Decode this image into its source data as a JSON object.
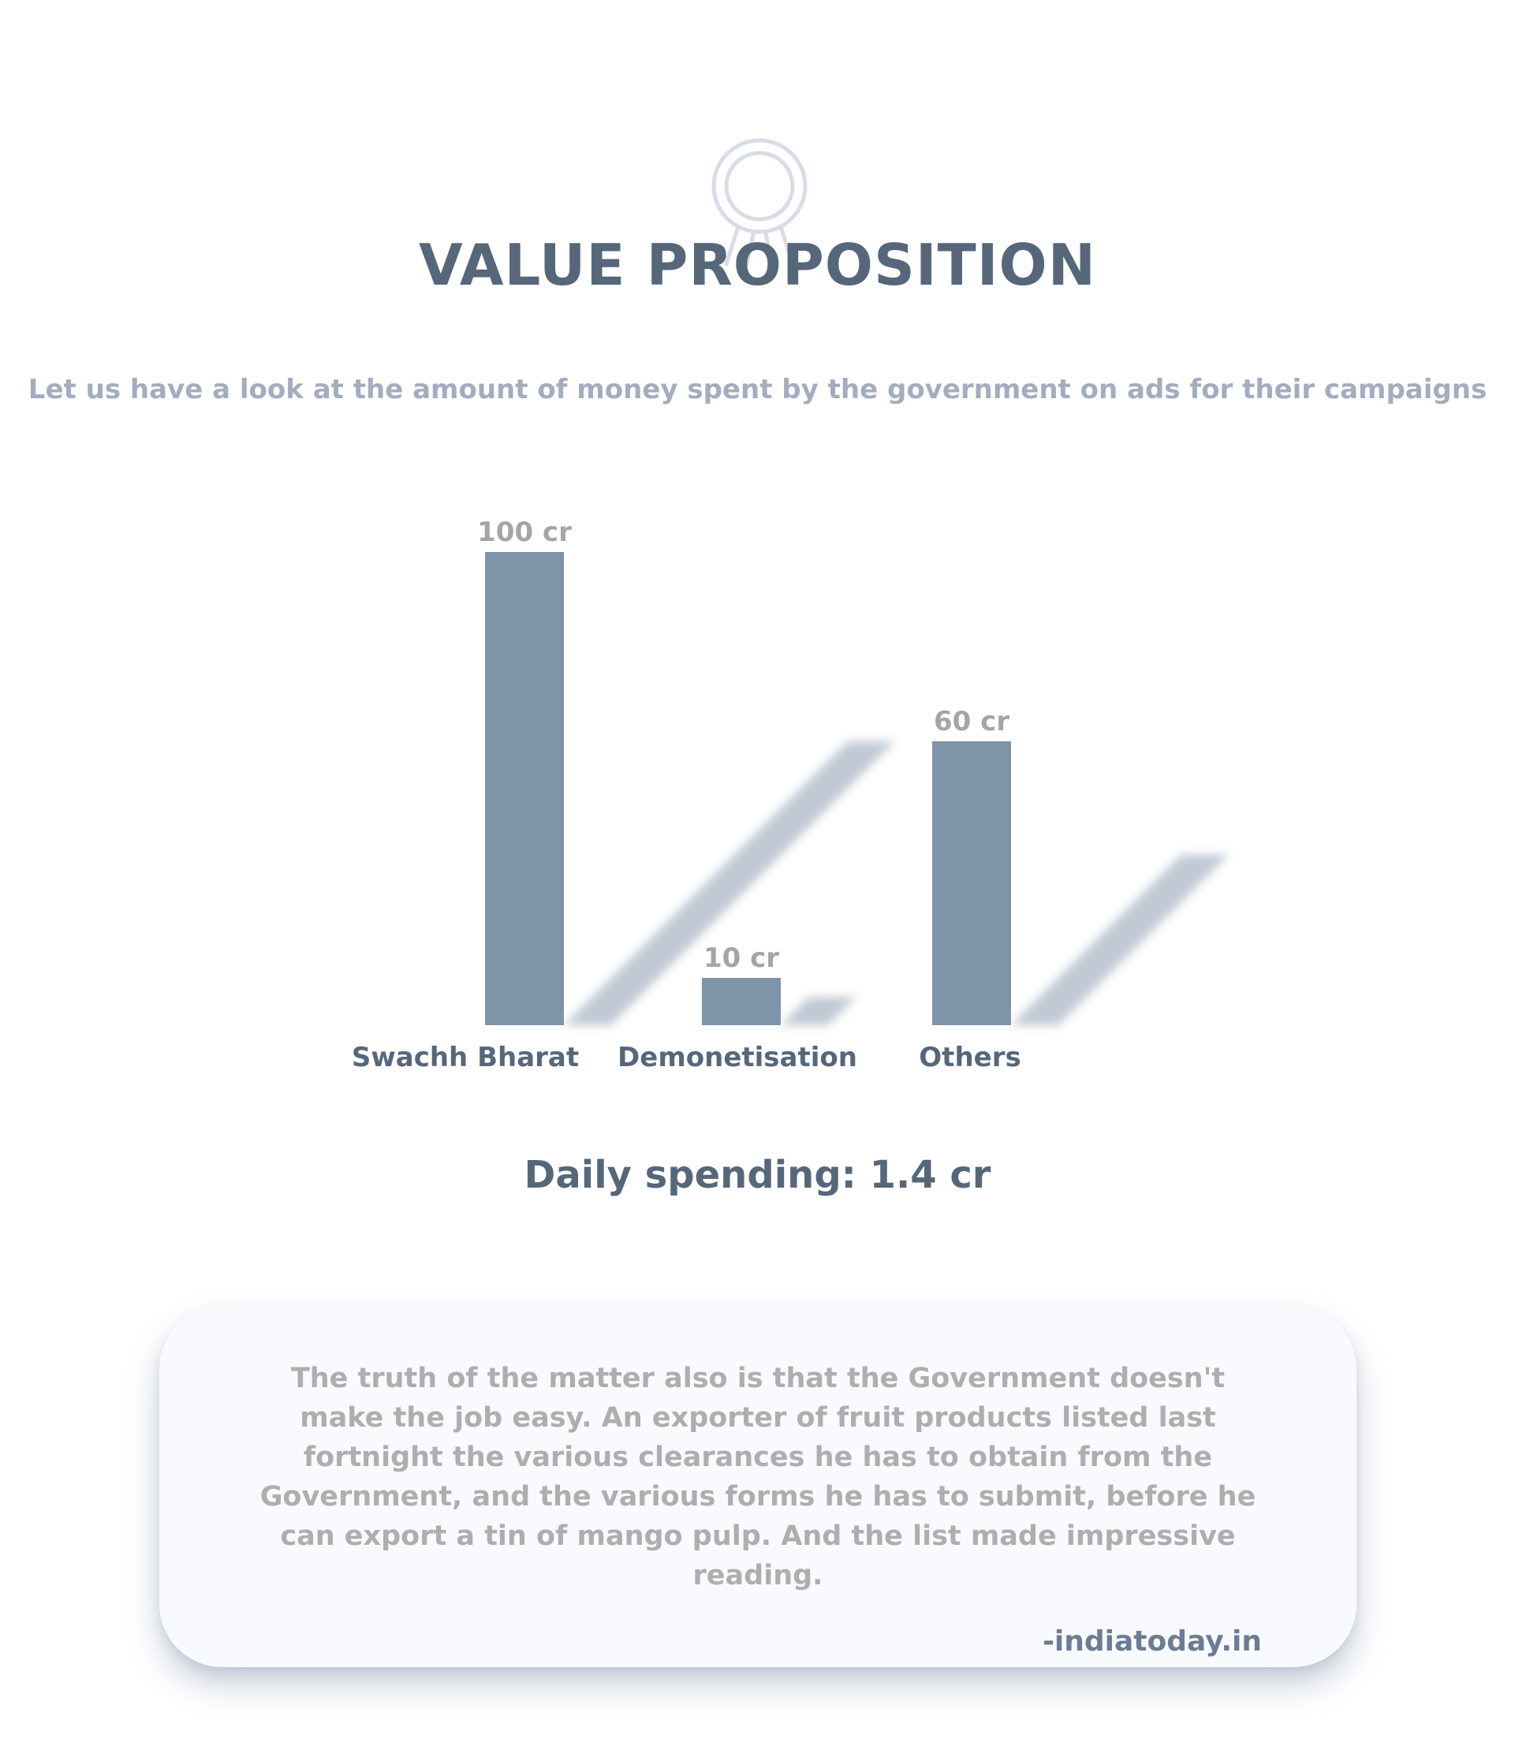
{
  "header": {
    "title": "VALUE PROPOSITION",
    "subtitle": "Let us have a look at the amount of money spent by the government on ads for their campaigns"
  },
  "icons": {
    "header_icon": "award-ribbon-icon"
  },
  "colors": {
    "bar": "#7f94a9",
    "bar_shadow": "#b9c4d0",
    "title": "#56677a",
    "subtitle": "#a4acbf",
    "value_label": "#a5a5a5",
    "quote_text": "#aeaeae",
    "quote_source": "#6b7d94",
    "card_background": "#f8fafd"
  },
  "chart_data": {
    "type": "bar",
    "title": "",
    "xlabel": "",
    "ylabel": "",
    "categories": [
      "Swachh Bharat",
      "Demonetisation",
      "Others"
    ],
    "values": [
      100,
      10,
      60
    ],
    "value_labels": [
      "100 cr",
      "10 cr",
      "60 cr"
    ],
    "ylim": [
      0,
      100
    ],
    "grid": false,
    "axes_visible": false
  },
  "summary": {
    "daily_spending": "Daily spending: 1.4 cr"
  },
  "quote": {
    "text": "The truth of the matter also is that the Government doesn't make the job easy. An exporter of fruit products listed last fortnight the various clear­ances he has to obtain from the Government, and the various forms he has to submit, before he can export a tin of mango pulp. And the list made impressive reading.",
    "source": "-indiatoday.in"
  }
}
